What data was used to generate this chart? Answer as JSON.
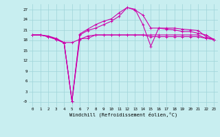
{
  "x": [
    0,
    1,
    2,
    3,
    4,
    5,
    6,
    7,
    8,
    9,
    10,
    11,
    12,
    13,
    14,
    15,
    16,
    17,
    18,
    19,
    20,
    21,
    22,
    23
  ],
  "line1": [
    19.5,
    19.5,
    19.2,
    18.5,
    17.3,
    17.3,
    18.2,
    19.2,
    19.5,
    19.5,
    19.5,
    19.5,
    19.5,
    19.5,
    19.5,
    19.0,
    19.0,
    19.0,
    19.0,
    19.0,
    19.0,
    19.0,
    18.5,
    18.2
  ],
  "line2": [
    19.5,
    19.5,
    19.0,
    18.2,
    17.2,
    0.2,
    18.4,
    18.5,
    19.5,
    19.5,
    19.5,
    19.5,
    19.5,
    19.5,
    19.5,
    19.5,
    19.5,
    19.5,
    19.5,
    19.5,
    19.5,
    19.5,
    18.5,
    18.2
  ],
  "line3": [
    19.5,
    19.5,
    19.0,
    18.2,
    17.2,
    0.2,
    19.5,
    20.8,
    21.5,
    22.5,
    23.5,
    25.0,
    27.5,
    26.8,
    25.3,
    21.5,
    21.5,
    21.2,
    21.0,
    20.5,
    20.5,
    20.0,
    19.5,
    18.2
  ],
  "line4": [
    19.5,
    19.5,
    19.0,
    18.2,
    17.2,
    0.2,
    19.8,
    21.2,
    22.5,
    23.5,
    24.2,
    26.0,
    27.5,
    27.0,
    22.5,
    16.2,
    21.5,
    21.5,
    21.5,
    21.2,
    21.0,
    20.8,
    19.0,
    18.2
  ],
  "bg_color": "#c8eef0",
  "line_color": "#cc00aa",
  "grid_color": "#9ed4d8",
  "xlabel": "Windchill (Refroidissement éolien,°C)",
  "ylabel_ticks": [
    "-0",
    "3",
    "6",
    "9",
    "12",
    "15",
    "18",
    "21",
    "24",
    "27"
  ],
  "yticks": [
    0,
    3,
    6,
    9,
    12,
    15,
    18,
    21,
    24,
    27
  ],
  "xticks": [
    0,
    1,
    2,
    3,
    4,
    5,
    6,
    7,
    8,
    9,
    10,
    11,
    12,
    13,
    14,
    15,
    16,
    17,
    18,
    19,
    20,
    21,
    22,
    23
  ],
  "xlim": [
    -0.5,
    23.5
  ],
  "ylim": [
    -1.5,
    28.5
  ],
  "figsize": [
    3.2,
    2.0
  ],
  "dpi": 100
}
